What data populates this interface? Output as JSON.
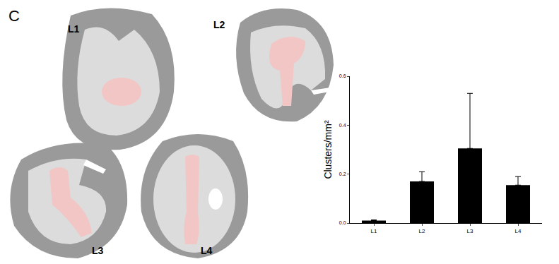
{
  "panel_label": "C",
  "sections": [
    {
      "label": "L1"
    },
    {
      "label": "L2"
    },
    {
      "label": "L3"
    },
    {
      "label": "L4"
    }
  ],
  "chart_data": {
    "type": "bar",
    "categories": [
      "L1",
      "L2",
      "L3",
      "L4"
    ],
    "values": [
      0.01,
      0.17,
      0.305,
      0.155
    ],
    "errors": [
      0.003,
      0.04,
      0.225,
      0.035
    ],
    "color": "#000000",
    "y_label": "Clusters/mm²",
    "ylim": [
      0,
      0.6
    ],
    "yticks": [
      {
        "value": 0,
        "label": "0.0"
      },
      {
        "value": 0.2,
        "label": "0.2"
      },
      {
        "value": 0.4,
        "label": "0.4"
      },
      {
        "value": 0.6,
        "label": "0.6"
      }
    ],
    "grid": false
  }
}
